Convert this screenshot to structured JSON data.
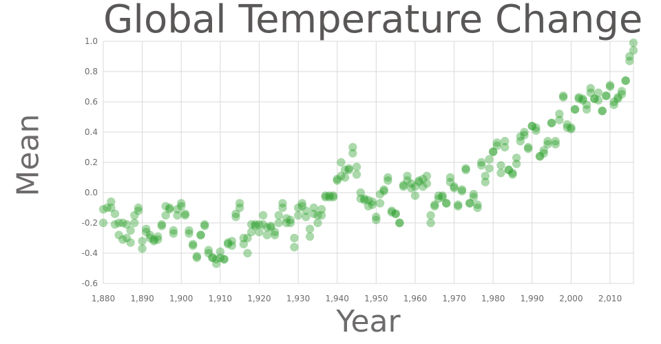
{
  "chart_data": {
    "type": "scatter",
    "title": "Global Temperature Change",
    "xlabel": "Year",
    "ylabel": "Mean",
    "xlim": [
      1880,
      2016
    ],
    "ylim": [
      -0.6,
      1.0
    ],
    "x_ticks": [
      "1,880",
      "1,890",
      "1,900",
      "1,910",
      "1,920",
      "1,930",
      "1,940",
      "1,950",
      "1,960",
      "1,970",
      "1,980",
      "1,990",
      "2,000",
      "2,010"
    ],
    "y_ticks": [
      "1.0",
      "0.8",
      "0.6",
      "0.4",
      "0.2",
      "0.0",
      "-0.2",
      "-0.4",
      "-0.6"
    ],
    "grid": true,
    "marker_color": "#2ca02c",
    "series": [
      {
        "values": [
          [
            1880,
            -0.2
          ],
          [
            1880,
            -0.11
          ],
          [
            1881,
            -0.1
          ],
          [
            1882,
            -0.06
          ],
          [
            1882,
            -0.1
          ],
          [
            1883,
            -0.14
          ],
          [
            1883,
            -0.21
          ],
          [
            1884,
            -0.28
          ],
          [
            1884,
            -0.2
          ],
          [
            1885,
            -0.31
          ],
          [
            1885,
            -0.2
          ],
          [
            1886,
            -0.3
          ],
          [
            1886,
            -0.21
          ],
          [
            1887,
            -0.33
          ],
          [
            1887,
            -0.25
          ],
          [
            1888,
            -0.2
          ],
          [
            1888,
            -0.15
          ],
          [
            1889,
            -0.1
          ],
          [
            1889,
            -0.12
          ],
          [
            1890,
            -0.37
          ],
          [
            1890,
            -0.32
          ],
          [
            1891,
            -0.24
          ],
          [
            1891,
            -0.26
          ],
          [
            1892,
            -0.3
          ],
          [
            1892,
            -0.28
          ],
          [
            1893,
            -0.31
          ],
          [
            1893,
            -0.32
          ],
          [
            1894,
            -0.29
          ],
          [
            1894,
            -0.31
          ],
          [
            1895,
            -0.22
          ],
          [
            1895,
            -0.21
          ],
          [
            1896,
            -0.15
          ],
          [
            1896,
            -0.09
          ],
          [
            1897,
            -0.11
          ],
          [
            1897,
            -0.1
          ],
          [
            1898,
            -0.25
          ],
          [
            1898,
            -0.27
          ],
          [
            1899,
            -0.15
          ],
          [
            1899,
            -0.11
          ],
          [
            1900,
            -0.07
          ],
          [
            1900,
            -0.09
          ],
          [
            1901,
            -0.14
          ],
          [
            1901,
            -0.15
          ],
          [
            1902,
            -0.27
          ],
          [
            1902,
            -0.25
          ],
          [
            1903,
            -0.35
          ],
          [
            1903,
            -0.34
          ],
          [
            1904,
            -0.43
          ],
          [
            1904,
            -0.42
          ],
          [
            1905,
            -0.28
          ],
          [
            1905,
            -0.28
          ],
          [
            1906,
            -0.22
          ],
          [
            1906,
            -0.21
          ],
          [
            1907,
            -0.38
          ],
          [
            1907,
            -0.4
          ],
          [
            1908,
            -0.43
          ],
          [
            1908,
            -0.43
          ],
          [
            1909,
            -0.47
          ],
          [
            1909,
            -0.44
          ],
          [
            1910,
            -0.43
          ],
          [
            1910,
            -0.39
          ],
          [
            1911,
            -0.44
          ],
          [
            1911,
            -0.44
          ],
          [
            1912,
            -0.33
          ],
          [
            1912,
            -0.34
          ],
          [
            1913,
            -0.35
          ],
          [
            1913,
            -0.32
          ],
          [
            1914,
            -0.16
          ],
          [
            1914,
            -0.14
          ],
          [
            1915,
            -0.1
          ],
          [
            1915,
            -0.07
          ],
          [
            1916,
            -0.3
          ],
          [
            1916,
            -0.34
          ],
          [
            1917,
            -0.4
          ],
          [
            1917,
            -0.3
          ],
          [
            1918,
            -0.21
          ],
          [
            1918,
            -0.26
          ],
          [
            1919,
            -0.21
          ],
          [
            1919,
            -0.22
          ],
          [
            1920,
            -0.21
          ],
          [
            1920,
            -0.26
          ],
          [
            1921,
            -0.15
          ],
          [
            1921,
            -0.21
          ],
          [
            1922,
            -0.28
          ],
          [
            1922,
            -0.23
          ],
          [
            1923,
            -0.23
          ],
          [
            1923,
            -0.22
          ],
          [
            1924,
            -0.26
          ],
          [
            1924,
            -0.28
          ],
          [
            1925,
            -0.2
          ],
          [
            1925,
            -0.15
          ],
          [
            1926,
            -0.07
          ],
          [
            1926,
            -0.1
          ],
          [
            1927,
            -0.2
          ],
          [
            1927,
            -0.17
          ],
          [
            1928,
            -0.18
          ],
          [
            1928,
            -0.2
          ],
          [
            1929,
            -0.3
          ],
          [
            1929,
            -0.36
          ],
          [
            1930,
            -0.15
          ],
          [
            1930,
            -0.1
          ],
          [
            1931,
            -0.07
          ],
          [
            1931,
            -0.09
          ],
          [
            1932,
            -0.16
          ],
          [
            1932,
            -0.12
          ],
          [
            1933,
            -0.29
          ],
          [
            1933,
            -0.24
          ],
          [
            1934,
            -0.14
          ],
          [
            1934,
            -0.1
          ],
          [
            1935,
            -0.2
          ],
          [
            1935,
            -0.15
          ],
          [
            1936,
            -0.15
          ],
          [
            1936,
            -0.11
          ],
          [
            1937,
            -0.02
          ],
          [
            1937,
            -0.03
          ],
          [
            1938,
            -0.03
          ],
          [
            1938,
            -0.02
          ],
          [
            1939,
            -0.03
          ],
          [
            1939,
            -0.02
          ],
          [
            1940,
            0.09
          ],
          [
            1940,
            0.08
          ],
          [
            1941,
            0.2
          ],
          [
            1941,
            0.11
          ],
          [
            1942,
            0.15
          ],
          [
            1942,
            0.1
          ],
          [
            1943,
            0.15
          ],
          [
            1943,
            0.16
          ],
          [
            1944,
            0.3
          ],
          [
            1944,
            0.26
          ],
          [
            1945,
            0.17
          ],
          [
            1945,
            0.12
          ],
          [
            1946,
            0.0
          ],
          [
            1946,
            -0.04
          ],
          [
            1947,
            -0.05
          ],
          [
            1947,
            -0.04
          ],
          [
            1948,
            -0.09
          ],
          [
            1948,
            -0.05
          ],
          [
            1949,
            -0.08
          ],
          [
            1949,
            -0.06
          ],
          [
            1950,
            -0.18
          ],
          [
            1950,
            -0.16
          ],
          [
            1951,
            -0.01
          ],
          [
            1951,
            -0.07
          ],
          [
            1952,
            0.02
          ],
          [
            1952,
            0.01
          ],
          [
            1953,
            0.1
          ],
          [
            1953,
            0.08
          ],
          [
            1954,
            -0.12
          ],
          [
            1954,
            -0.13
          ],
          [
            1955,
            -0.14
          ],
          [
            1955,
            -0.14
          ],
          [
            1956,
            -0.2
          ],
          [
            1956,
            -0.2
          ],
          [
            1957,
            0.05
          ],
          [
            1957,
            0.04
          ],
          [
            1958,
            0.11
          ],
          [
            1958,
            0.08
          ],
          [
            1959,
            0.06
          ],
          [
            1959,
            0.03
          ],
          [
            1960,
            -0.02
          ],
          [
            1960,
            0.04
          ],
          [
            1961,
            0.08
          ],
          [
            1961,
            0.07
          ],
          [
            1962,
            0.09
          ],
          [
            1962,
            0.04
          ],
          [
            1963,
            0.11
          ],
          [
            1963,
            0.06
          ],
          [
            1964,
            -0.15
          ],
          [
            1964,
            -0.2
          ],
          [
            1965,
            -0.08
          ],
          [
            1965,
            -0.09
          ],
          [
            1966,
            -0.04
          ],
          [
            1966,
            -0.02
          ],
          [
            1967,
            -0.02
          ],
          [
            1967,
            -0.03
          ],
          [
            1968,
            -0.07
          ],
          [
            1968,
            -0.07
          ],
          [
            1969,
            0.1
          ],
          [
            1969,
            0.07
          ],
          [
            1970,
            0.03
          ],
          [
            1970,
            0.04
          ],
          [
            1971,
            -0.08
          ],
          [
            1971,
            -0.09
          ],
          [
            1972,
            0.02
          ],
          [
            1972,
            0.01
          ],
          [
            1973,
            0.16
          ],
          [
            1973,
            0.15
          ],
          [
            1974,
            -0.07
          ],
          [
            1974,
            -0.07
          ],
          [
            1975,
            -0.01
          ],
          [
            1975,
            -0.03
          ],
          [
            1976,
            -0.1
          ],
          [
            1976,
            -0.08
          ],
          [
            1977,
            0.2
          ],
          [
            1977,
            0.18
          ],
          [
            1978,
            0.11
          ],
          [
            1978,
            0.07
          ],
          [
            1979,
            0.22
          ],
          [
            1979,
            0.16
          ],
          [
            1980,
            0.27
          ],
          [
            1980,
            0.27
          ],
          [
            1981,
            0.33
          ],
          [
            1981,
            0.31
          ],
          [
            1982,
            0.18
          ],
          [
            1982,
            0.13
          ],
          [
            1983,
            0.34
          ],
          [
            1983,
            0.3
          ],
          [
            1984,
            0.15
          ],
          [
            1984,
            0.15
          ],
          [
            1985,
            0.13
          ],
          [
            1985,
            0.12
          ],
          [
            1986,
            0.19
          ],
          [
            1986,
            0.23
          ],
          [
            1987,
            0.34
          ],
          [
            1987,
            0.37
          ],
          [
            1988,
            0.4
          ],
          [
            1988,
            0.38
          ],
          [
            1989,
            0.3
          ],
          [
            1989,
            0.29
          ],
          [
            1990,
            0.44
          ],
          [
            1990,
            0.44
          ],
          [
            1991,
            0.41
          ],
          [
            1991,
            0.43
          ],
          [
            1992,
            0.24
          ],
          [
            1992,
            0.24
          ],
          [
            1993,
            0.26
          ],
          [
            1993,
            0.28
          ],
          [
            1994,
            0.32
          ],
          [
            1994,
            0.34
          ],
          [
            1995,
            0.46
          ],
          [
            1995,
            0.46
          ],
          [
            1996,
            0.32
          ],
          [
            1996,
            0.34
          ],
          [
            1997,
            0.48
          ],
          [
            1997,
            0.52
          ],
          [
            1998,
            0.64
          ],
          [
            1998,
            0.63
          ],
          [
            1999,
            0.43
          ],
          [
            1999,
            0.45
          ],
          [
            2000,
            0.42
          ],
          [
            2000,
            0.43
          ],
          [
            2001,
            0.55
          ],
          [
            2001,
            0.55
          ],
          [
            2002,
            0.62
          ],
          [
            2002,
            0.63
          ],
          [
            2003,
            0.61
          ],
          [
            2003,
            0.62
          ],
          [
            2004,
            0.55
          ],
          [
            2004,
            0.58
          ],
          [
            2005,
            0.69
          ],
          [
            2005,
            0.66
          ],
          [
            2006,
            0.62
          ],
          [
            2006,
            0.62
          ],
          [
            2007,
            0.66
          ],
          [
            2007,
            0.61
          ],
          [
            2008,
            0.54
          ],
          [
            2008,
            0.54
          ],
          [
            2009,
            0.64
          ],
          [
            2009,
            0.64
          ],
          [
            2010,
            0.71
          ],
          [
            2010,
            0.7
          ],
          [
            2011,
            0.58
          ],
          [
            2011,
            0.6
          ],
          [
            2012,
            0.62
          ],
          [
            2012,
            0.63
          ],
          [
            2013,
            0.65
          ],
          [
            2013,
            0.67
          ],
          [
            2014,
            0.74
          ],
          [
            2014,
            0.74
          ],
          [
            2015,
            0.87
          ],
          [
            2015,
            0.9
          ],
          [
            2016,
            0.99
          ],
          [
            2016,
            0.94
          ]
        ]
      }
    ]
  }
}
